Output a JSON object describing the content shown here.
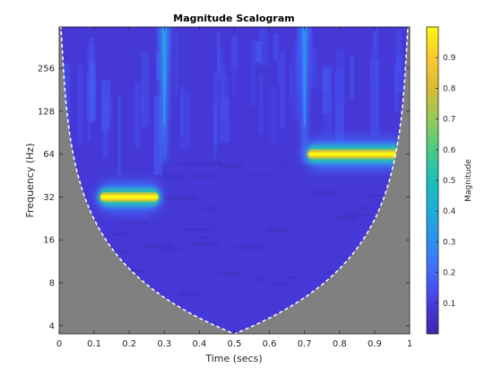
{
  "chart_data": {
    "type": "heatmap",
    "title": "Magnitude Scalogram",
    "xlabel": "Time (secs)",
    "ylabel": "Frequency (Hz)",
    "xlim": [
      0,
      1
    ],
    "ylim": [
      3.5,
      500
    ],
    "yscale": "log2",
    "x_ticks": [
      0,
      0.1,
      0.2,
      0.3,
      0.4,
      0.5,
      0.6,
      0.7,
      0.8,
      0.9,
      1
    ],
    "x_tick_labels": [
      "0",
      "0.1",
      "0.2",
      "0.3",
      "0.4",
      "0.5",
      "0.6",
      "0.7",
      "0.8",
      "0.9",
      "1"
    ],
    "y_ticks": [
      4,
      8,
      16,
      32,
      64,
      128,
      256
    ],
    "y_tick_labels": [
      "4",
      "8",
      "16",
      "32",
      "64",
      "128",
      "256"
    ],
    "colorbar": {
      "label": "Magnitude",
      "colormap": "parula",
      "range": [
        0,
        1
      ],
      "ticks": [
        0.1,
        0.2,
        0.3,
        0.4,
        0.5,
        0.6,
        0.7,
        0.8,
        0.9
      ],
      "tick_labels": [
        "0.1",
        "0.2",
        "0.3",
        "0.4",
        "0.5",
        "0.6",
        "0.7",
        "0.8",
        "0.9"
      ]
    },
    "features": [
      {
        "component": "tone",
        "t_start": 0.12,
        "t_end": 0.28,
        "frequency_hz": 32,
        "magnitude": 1.0
      },
      {
        "component": "tone",
        "t_start": 0.71,
        "t_end": 0.98,
        "frequency_hz": 64,
        "magnitude": 1.0
      },
      {
        "component": "transient",
        "time": 0.3,
        "magnitude": 0.35
      },
      {
        "component": "transient",
        "time": 0.7,
        "magnitude": 0.3
      }
    ],
    "cone_of_influence": {
      "min_frequency_hz": 3.5,
      "at_time": 0.5,
      "shading_color": "#808080",
      "line_style": "dashed",
      "line_color": "#ffffff"
    },
    "background_magnitude": 0.08,
    "grid": false
  },
  "colors": {
    "low": "#3e26a8",
    "mid": "#2eb7a4",
    "high": "#f9fb0e",
    "coi_shade": "#808080"
  }
}
